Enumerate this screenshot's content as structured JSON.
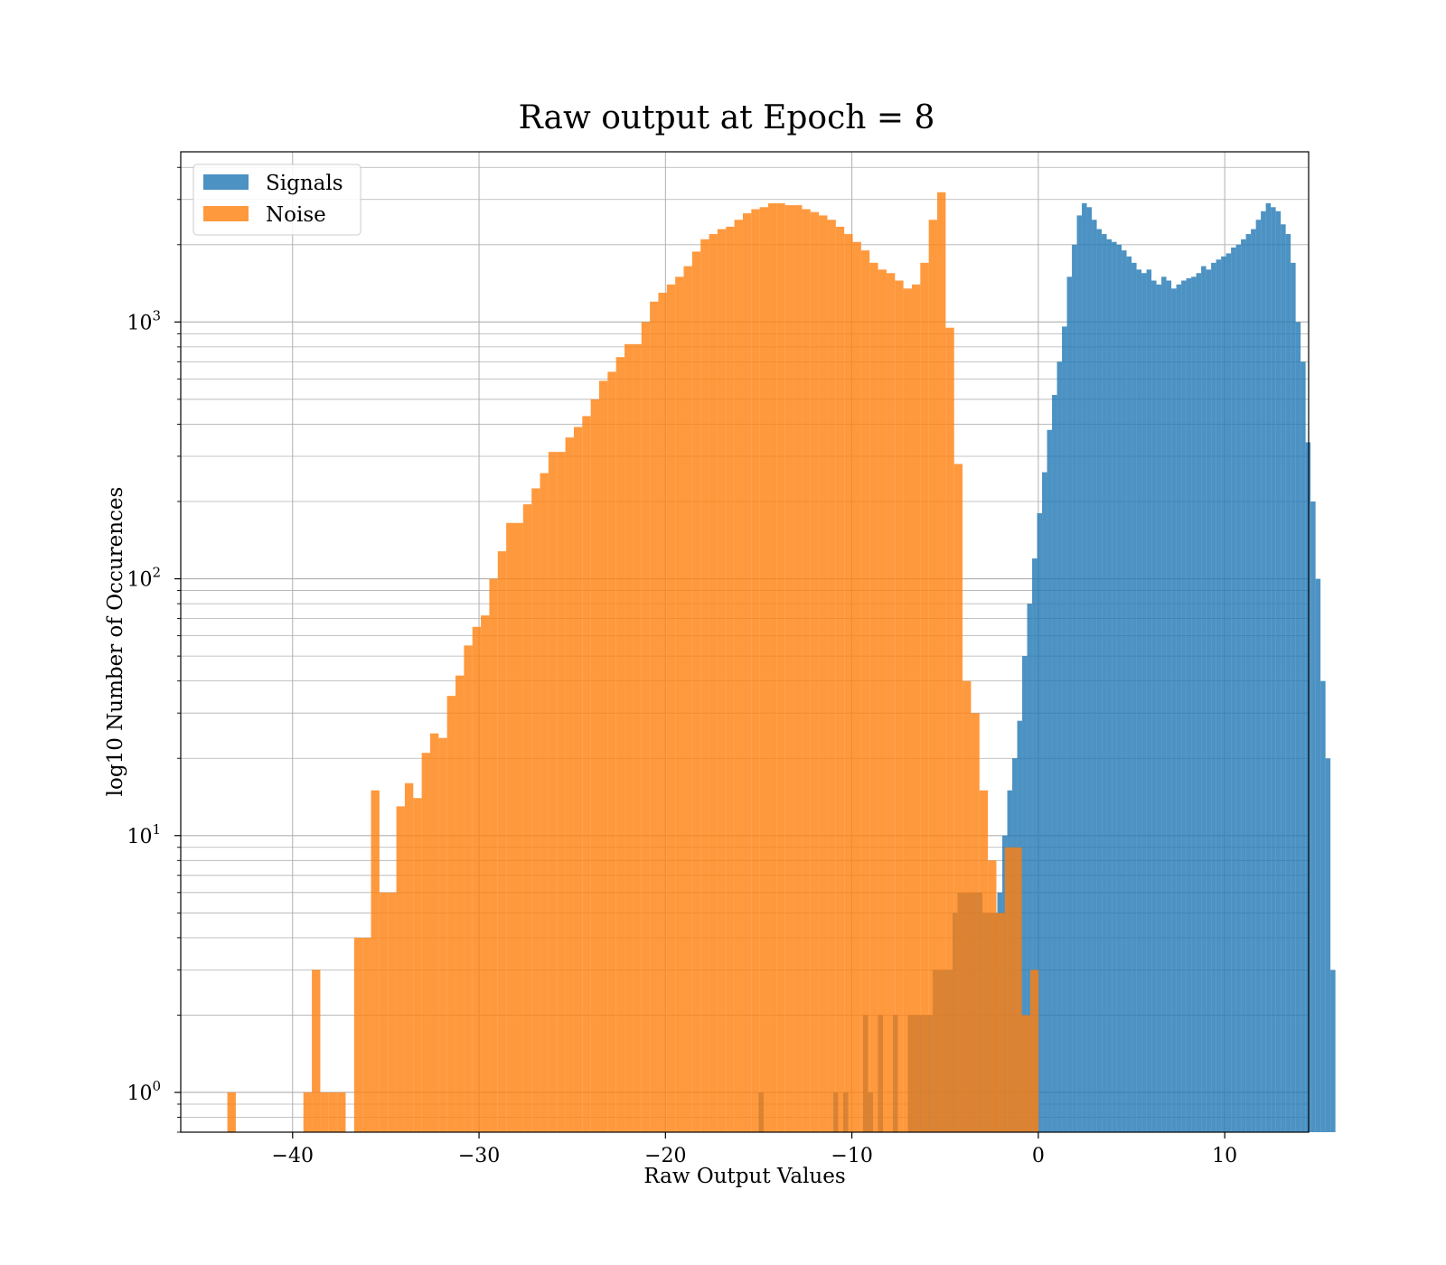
{
  "chart_data": {
    "type": "bar",
    "title": "Raw output at Epoch = 8",
    "xlabel": "Raw Output Values",
    "ylabel": "log10 Number of Occurences",
    "xlim": [
      -46,
      14.5
    ],
    "ylim": [
      0.7,
      4600
    ],
    "yscale": "log",
    "grid": true,
    "legend_position": "top-left",
    "x_ticks": [
      {
        "value": -40,
        "label": "−40"
      },
      {
        "value": -30,
        "label": "−30"
      },
      {
        "value": -20,
        "label": "−20"
      },
      {
        "value": -10,
        "label": "−10"
      },
      {
        "value": 0,
        "label": "0"
      },
      {
        "value": 10,
        "label": "10"
      }
    ],
    "y_ticks": [
      {
        "value": 1,
        "base": "10",
        "exp": "0"
      },
      {
        "value": 10,
        "base": "10",
        "exp": "1"
      },
      {
        "value": 100,
        "base": "10",
        "exp": "2"
      },
      {
        "value": 1000,
        "base": "10",
        "exp": "3"
      }
    ],
    "series": [
      {
        "name": "Signals",
        "color": "#1f77b4",
        "opacity": 0.8,
        "bin_start": -15.0,
        "bin_width": 0.2667,
        "values": [
          1,
          0,
          0,
          0,
          0,
          0,
          0,
          0,
          0,
          0,
          0,
          0,
          0,
          0,
          0,
          1,
          0,
          1,
          0,
          0,
          0,
          2,
          1,
          0,
          2,
          0,
          0,
          2,
          0,
          0,
          2,
          2,
          2,
          2,
          2,
          3,
          3,
          3,
          3,
          5,
          6,
          6,
          6,
          6,
          6,
          5,
          5,
          5,
          6,
          10,
          15,
          20,
          28,
          50,
          80,
          120,
          180,
          260,
          380,
          520,
          700,
          960,
          1500,
          2000,
          2600,
          2900,
          2800,
          2500,
          2300,
          2200,
          2100,
          2050,
          2000,
          1900,
          1800,
          1700,
          1600,
          1550,
          1600,
          1450,
          1400,
          1500,
          1450,
          1350,
          1400,
          1450,
          1480,
          1500,
          1550,
          1650,
          1600,
          1700,
          1750,
          1800,
          1850,
          1950,
          2000,
          2100,
          2200,
          2300,
          2500,
          2700,
          2900,
          2800,
          2700,
          2400,
          2200,
          1700,
          1000,
          700,
          340,
          200,
          100,
          40,
          20,
          3
        ]
      },
      {
        "name": "Noise",
        "color": "#ff7f0e",
        "opacity": 0.8,
        "bin_start": -43.5,
        "bin_width": 0.4533,
        "values": [
          1,
          0,
          0,
          0,
          0,
          0,
          0,
          0,
          0,
          1,
          3,
          1,
          1,
          1,
          0,
          4,
          4,
          15,
          6,
          6,
          13,
          16,
          14,
          21,
          25,
          24,
          35,
          42,
          55,
          65,
          72,
          100,
          128,
          165,
          165,
          195,
          225,
          258,
          312,
          312,
          355,
          390,
          430,
          500,
          590,
          640,
          730,
          820,
          820,
          1000,
          1200,
          1300,
          1400,
          1500,
          1650,
          1880,
          2100,
          2200,
          2300,
          2350,
          2500,
          2650,
          2750,
          2800,
          2900,
          2900,
          2850,
          2850,
          2750,
          2680,
          2600,
          2500,
          2350,
          2200,
          2050,
          1900,
          1700,
          1600,
          1550,
          1450,
          1350,
          1400,
          1700,
          2500,
          3200,
          950,
          280,
          40,
          30,
          15,
          8,
          5,
          9,
          9,
          2,
          3
        ]
      }
    ]
  }
}
